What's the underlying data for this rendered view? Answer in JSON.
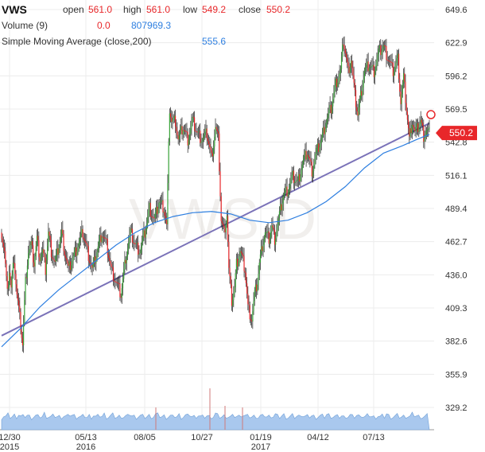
{
  "header": {
    "symbol": "VWS",
    "open_label": "open",
    "open_value": "561.0",
    "high_label": "high",
    "high_value": "561.0",
    "low_label": "low",
    "low_value": "549.2",
    "close_label": "close",
    "close_value": "550.2",
    "volume_label": "Volume (9)",
    "volume_value_a": "0.0",
    "volume_value_b": "807969.3",
    "sma_label": "Simple Moving Average (close,200)",
    "sma_value": "555.6"
  },
  "watermark": "VWS.D",
  "colors": {
    "up": "#3aa53a",
    "down": "#e8272a",
    "sma": "#2e7fe0",
    "trendline": "#7a72b8",
    "volume_fill": "#a9c8ee",
    "grid": "#ececec"
  },
  "chart_data": {
    "type": "candlestick",
    "title": "",
    "xlabel": "",
    "ylabel": "",
    "y_ticks": [
      "649.6",
      "622.9",
      "596.2",
      "569.5",
      "542.8",
      "516.1",
      "489.4",
      "462.7",
      "436.0",
      "409.3",
      "382.6",
      "355.9",
      "329.2"
    ],
    "ylim": [
      320,
      658
    ],
    "x_ticks": [
      {
        "label": "12/30",
        "sub": "2015"
      },
      {
        "label": "05/13",
        "sub": "2016"
      },
      {
        "label": "08/05",
        "sub": ""
      },
      {
        "label": "10/27",
        "sub": ""
      },
      {
        "label": "01/19",
        "sub": "2017"
      },
      {
        "label": "04/12",
        "sub": ""
      },
      {
        "label": "07/13",
        "sub": ""
      }
    ],
    "last_price": "550.2",
    "price_path": [
      [
        0,
        470
      ],
      [
        3,
        455
      ],
      [
        6,
        420
      ],
      [
        8,
        440
      ],
      [
        10,
        425
      ],
      [
        13,
        450
      ],
      [
        16,
        420
      ],
      [
        20,
        395
      ],
      [
        22,
        380
      ],
      [
        25,
        430
      ],
      [
        28,
        455
      ],
      [
        31,
        460
      ],
      [
        34,
        445
      ],
      [
        37,
        465
      ],
      [
        40,
        450
      ],
      [
        43,
        455
      ],
      [
        46,
        440
      ],
      [
        49,
        470
      ],
      [
        52,
        455
      ],
      [
        56,
        445
      ],
      [
        60,
        460
      ],
      [
        63,
        470
      ],
      [
        66,
        455
      ],
      [
        70,
        440
      ],
      [
        75,
        450
      ],
      [
        80,
        460
      ],
      [
        85,
        470
      ],
      [
        90,
        455
      ],
      [
        95,
        440
      ],
      [
        100,
        455
      ],
      [
        105,
        470
      ],
      [
        110,
        460
      ],
      [
        115,
        440
      ],
      [
        120,
        430
      ],
      [
        125,
        420
      ],
      [
        130,
        450
      ],
      [
        135,
        470
      ],
      [
        140,
        460
      ],
      [
        145,
        455
      ],
      [
        150,
        470
      ],
      [
        155,
        490
      ],
      [
        160,
        480
      ],
      [
        165,
        495
      ],
      [
        170,
        490
      ],
      [
        173,
        475
      ],
      [
        176,
        570
      ],
      [
        178,
        560
      ],
      [
        182,
        560
      ],
      [
        185,
        545
      ],
      [
        190,
        555
      ],
      [
        195,
        545
      ],
      [
        200,
        560
      ],
      [
        205,
        550
      ],
      [
        210,
        545
      ],
      [
        215,
        550
      ],
      [
        220,
        530
      ],
      [
        224,
        555
      ],
      [
        227,
        545
      ],
      [
        230,
        480
      ],
      [
        233,
        470
      ],
      [
        236,
        485
      ],
      [
        238,
        440
      ],
      [
        241,
        415
      ],
      [
        244,
        425
      ],
      [
        246,
        445
      ],
      [
        250,
        455
      ],
      [
        255,
        440
      ],
      [
        258,
        410
      ],
      [
        262,
        400
      ],
      [
        265,
        420
      ],
      [
        268,
        430
      ],
      [
        270,
        445
      ],
      [
        273,
        460
      ],
      [
        276,
        470
      ],
      [
        280,
        465
      ],
      [
        283,
        475
      ],
      [
        286,
        465
      ],
      [
        290,
        480
      ],
      [
        295,
        500
      ],
      [
        300,
        505
      ],
      [
        305,
        515
      ],
      [
        310,
        510
      ],
      [
        315,
        525
      ],
      [
        320,
        535
      ],
      [
        325,
        520
      ],
      [
        330,
        535
      ],
      [
        335,
        545
      ],
      [
        340,
        560
      ],
      [
        345,
        570
      ],
      [
        350,
        590
      ],
      [
        355,
        600
      ],
      [
        358,
        625
      ],
      [
        360,
        615
      ],
      [
        363,
        600
      ],
      [
        366,
        610
      ],
      [
        370,
        580
      ],
      [
        373,
        565
      ],
      [
        376,
        580
      ],
      [
        380,
        600
      ],
      [
        385,
        605
      ],
      [
        390,
        600
      ],
      [
        395,
        615
      ],
      [
        400,
        620
      ],
      [
        405,
        610
      ],
      [
        410,
        600
      ],
      [
        415,
        610
      ],
      [
        418,
        575
      ],
      [
        421,
        595
      ],
      [
        424,
        570
      ],
      [
        427,
        545
      ],
      [
        430,
        560
      ],
      [
        433,
        550
      ],
      [
        436,
        555
      ],
      [
        439,
        560
      ],
      [
        442,
        548
      ],
      [
        445,
        552
      ],
      [
        448,
        550
      ]
    ],
    "sma_path": [
      [
        0,
        378
      ],
      [
        20,
        393
      ],
      [
        40,
        410
      ],
      [
        60,
        424
      ],
      [
        80,
        436
      ],
      [
        100,
        448
      ],
      [
        120,
        460
      ],
      [
        140,
        470
      ],
      [
        160,
        478
      ],
      [
        180,
        483
      ],
      [
        200,
        486
      ],
      [
        220,
        487
      ],
      [
        240,
        485
      ],
      [
        260,
        480
      ],
      [
        280,
        478
      ],
      [
        300,
        480
      ],
      [
        320,
        486
      ],
      [
        340,
        495
      ],
      [
        360,
        507
      ],
      [
        380,
        522
      ],
      [
        400,
        534
      ],
      [
        420,
        540
      ],
      [
        435,
        545
      ],
      [
        448,
        549
      ]
    ],
    "trendline": [
      [
        0,
        387
      ],
      [
        448,
        558
      ]
    ],
    "volume_profile": [
      0.25,
      0.35,
      0.3,
      0.4,
      0.28,
      0.3,
      0.38,
      0.32,
      0.45,
      0.3,
      0.28,
      0.35,
      0.4,
      0.3,
      0.25,
      0.3,
      0.35,
      0.28,
      0.32,
      0.3,
      0.5,
      0.35,
      0.3,
      0.28,
      0.32,
      0.36,
      0.3,
      0.28,
      0.3,
      0.35,
      0.32,
      0.3,
      0.45,
      0.4,
      0.35,
      0.3,
      0.32,
      0.28,
      0.3,
      0.35
    ]
  }
}
